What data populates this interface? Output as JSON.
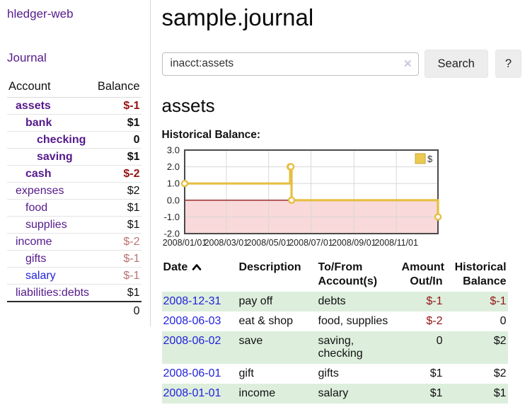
{
  "colors": {
    "accent_purple": "#551a8b",
    "link_blue": "#2222dd",
    "negative_strong": "#941414",
    "negative_soft": "#bb7272",
    "row_stripe_green": "#ddeedd",
    "chart_line_gold": "#e6bf42",
    "negative_region_pink": "#f9d9d9",
    "zero_line_red": "#8b1a1a"
  },
  "sidebar": {
    "app_title": "hledger-web",
    "journal_label": "Journal",
    "accounts_table": {
      "header_account": "Account",
      "header_balance": "Balance",
      "rows": [
        {
          "name": "assets",
          "depth": 1,
          "bold": true,
          "balance": "$-1",
          "balance_style": "neg-strong"
        },
        {
          "name": "bank",
          "depth": 2,
          "bold": true,
          "balance": "$1",
          "balance_style": "pos"
        },
        {
          "name": "checking",
          "depth": 3,
          "bold": true,
          "balance": "0",
          "balance_style": "pos"
        },
        {
          "name": "saving",
          "depth": 3,
          "bold": true,
          "balance": "$1",
          "balance_style": "pos"
        },
        {
          "name": "cash",
          "depth": 2,
          "bold": true,
          "balance": "$-2",
          "balance_style": "neg-strong"
        },
        {
          "name": "expenses",
          "depth": 1,
          "bold": false,
          "balance": "$2",
          "balance_style": "pos"
        },
        {
          "name": "food",
          "depth": 2,
          "bold": false,
          "balance": "$1",
          "balance_style": "pos"
        },
        {
          "name": "supplies",
          "depth": 2,
          "bold": false,
          "balance": "$1",
          "balance_style": "pos"
        },
        {
          "name": "income",
          "depth": 1,
          "bold": false,
          "balance": "$-2",
          "balance_style": "neg-soft"
        },
        {
          "name": "gifts",
          "depth": 2,
          "bold": false,
          "balance": "$-1",
          "balance_style": "neg-soft"
        },
        {
          "name": "salary",
          "depth": 2,
          "bold": false,
          "link_color": "blue",
          "balance": "$-1",
          "balance_style": "neg-soft"
        },
        {
          "name": "liabilities:debts",
          "depth": 1,
          "bold": false,
          "balance": "$1",
          "balance_style": "pos"
        }
      ],
      "total": "0"
    }
  },
  "main": {
    "title": "sample.journal",
    "search": {
      "value": "inacct:assets",
      "clear_icon": "✕",
      "button_label": "Search",
      "help_label": "?"
    },
    "account_heading": "assets",
    "register_table": {
      "headers": {
        "date": "Date",
        "description": "Description",
        "accounts": "To/From Account(s)",
        "amount": "Amount Out/In",
        "balance": "Historical Balance"
      },
      "rows": [
        {
          "date": "2008-12-31",
          "description": "pay off",
          "accounts": "debts",
          "amount": "$-1",
          "balance": "$-1"
        },
        {
          "date": "2008-06-03",
          "description": "eat & shop",
          "accounts": "food, supplies",
          "amount": "$-2",
          "balance": "0"
        },
        {
          "date": "2008-06-02",
          "description": "save",
          "accounts": "saving, checking",
          "amount": "0",
          "balance": "$2"
        },
        {
          "date": "2008-06-01",
          "description": "gift",
          "accounts": "gifts",
          "amount": "$1",
          "balance": "$2"
        },
        {
          "date": "2008-01-01",
          "description": "income",
          "accounts": "salary",
          "amount": "$1",
          "balance": "$1"
        }
      ]
    }
  },
  "chart_data": {
    "type": "line",
    "title": "Historical Balance:",
    "step": true,
    "markers": true,
    "series": [
      {
        "name": "$",
        "color": "#e6bf42",
        "points": [
          [
            "2008-01-01",
            1
          ],
          [
            "2008-06-01",
            2
          ],
          [
            "2008-06-02",
            2
          ],
          [
            "2008-06-03",
            0
          ],
          [
            "2008-12-31",
            -1
          ]
        ]
      }
    ],
    "xdomain": [
      "2008-01-01",
      "2008-12-31"
    ],
    "xticks": [
      "2008/01/01",
      "2008/03/01",
      "2008/05/01",
      "2008/07/01",
      "2008/09/01",
      "2008/11/01"
    ],
    "yticks": [
      3.0,
      2.0,
      1.0,
      0.0,
      -1.0,
      -2.0
    ],
    "ylim": [
      -2,
      3
    ],
    "grid": true,
    "legend": {
      "label": "$",
      "position": "top-right"
    },
    "negative_region_fill": "#f9d9d9",
    "zero_line_color": "#8b1a1a"
  }
}
